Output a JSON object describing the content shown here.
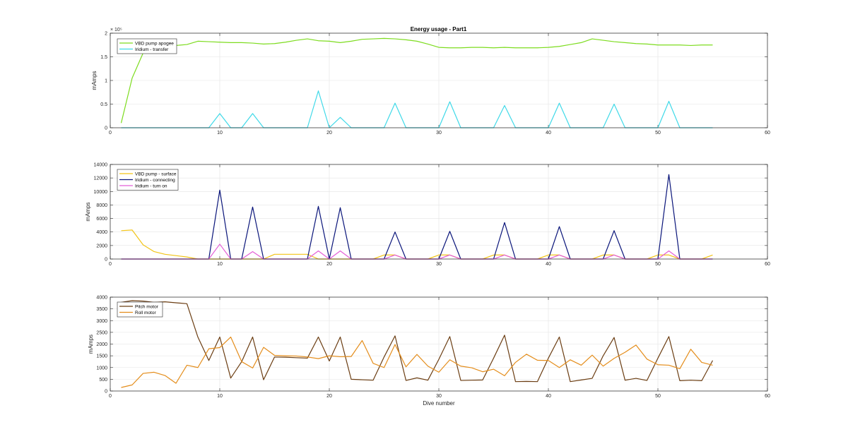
{
  "figure_title": "Energy usage - Part1",
  "chart_data": [
    {
      "type": "line",
      "title": "Energy usage - Part1",
      "xlabel": "",
      "ylabel": "mAmps",
      "xlim": [
        0,
        60
      ],
      "ylim": [
        0,
        200000
      ],
      "xticks": [
        0,
        10,
        20,
        30,
        40,
        50,
        60
      ],
      "xtick_labels": [
        "0",
        "10",
        "20",
        "30",
        "40",
        "50",
        "60"
      ],
      "yticks": [
        0,
        50000,
        100000,
        150000,
        200000
      ],
      "ytick_labels": [
        "0",
        "0.5",
        "1",
        "1.5",
        "2"
      ],
      "y_exponent_label": "× 10⁵",
      "grid": true,
      "legend_position": "top-left",
      "x": [
        1,
        2,
        3,
        4,
        5,
        6,
        7,
        8,
        9,
        10,
        11,
        12,
        13,
        14,
        15,
        16,
        17,
        18,
        19,
        20,
        21,
        22,
        23,
        24,
        25,
        26,
        27,
        28,
        29,
        30,
        31,
        32,
        33,
        34,
        35,
        36,
        37,
        38,
        39,
        40,
        41,
        42,
        43,
        44,
        45,
        46,
        47,
        48,
        49,
        50,
        51,
        52,
        53,
        54,
        55
      ],
      "series": [
        {
          "name": "VBD pump apogee",
          "color": "#7ddc1f",
          "values": [
            10000,
            105000,
            158000,
            172000,
            174000,
            174000,
            176000,
            183000,
            182000,
            181000,
            180000,
            180000,
            179000,
            177000,
            178000,
            181000,
            185000,
            188000,
            184000,
            183000,
            180000,
            183000,
            187000,
            188000,
            189000,
            188000,
            186000,
            183000,
            177000,
            170000,
            169000,
            169000,
            170000,
            170000,
            169000,
            170000,
            169000,
            169000,
            169000,
            170000,
            172000,
            176000,
            180000,
            188000,
            185000,
            182000,
            180000,
            178000,
            177000,
            175000,
            175000,
            175000,
            174000,
            175000,
            175000
          ]
        },
        {
          "name": "Iridium - transfer",
          "color": "#3fd9e8",
          "values": [
            0,
            0,
            0,
            0,
            0,
            0,
            0,
            0,
            0,
            30000,
            0,
            0,
            30000,
            0,
            0,
            0,
            0,
            0,
            78000,
            0,
            22000,
            0,
            0,
            0,
            0,
            52000,
            0,
            0,
            0,
            0,
            55000,
            0,
            0,
            0,
            0,
            47000,
            0,
            0,
            0,
            0,
            52000,
            0,
            0,
            0,
            0,
            50000,
            0,
            0,
            0,
            0,
            56000,
            0,
            0,
            0,
            0
          ]
        }
      ]
    },
    {
      "type": "line",
      "title": "",
      "xlabel": "",
      "ylabel": "mAmps",
      "xlim": [
        0,
        60
      ],
      "ylim": [
        0,
        14000
      ],
      "xticks": [
        0,
        10,
        20,
        30,
        40,
        50,
        60
      ],
      "xtick_labels": [
        "0",
        "10",
        "20",
        "30",
        "40",
        "50",
        "60"
      ],
      "yticks": [
        0,
        2000,
        4000,
        6000,
        8000,
        10000,
        12000,
        14000
      ],
      "ytick_labels": [
        "0",
        "2000",
        "4000",
        "6000",
        "8000",
        "10000",
        "12000",
        "14000"
      ],
      "grid": true,
      "legend_position": "top-left",
      "x": [
        1,
        2,
        3,
        4,
        5,
        6,
        7,
        8,
        9,
        10,
        11,
        12,
        13,
        14,
        15,
        16,
        17,
        18,
        19,
        20,
        21,
        22,
        23,
        24,
        25,
        26,
        27,
        28,
        29,
        30,
        31,
        32,
        33,
        34,
        35,
        36,
        37,
        38,
        39,
        40,
        41,
        42,
        43,
        44,
        45,
        46,
        47,
        48,
        49,
        50,
        51,
        52,
        53,
        54,
        55
      ],
      "series": [
        {
          "name": "VBD pump - surface",
          "color": "#f2c418",
          "values": [
            4200,
            4300,
            2100,
            1100,
            700,
            500,
            300,
            0,
            0,
            0,
            0,
            0,
            0,
            0,
            700,
            700,
            700,
            700,
            0,
            0,
            0,
            0,
            0,
            0,
            600,
            600,
            0,
            0,
            0,
            600,
            600,
            0,
            0,
            0,
            600,
            600,
            0,
            0,
            0,
            600,
            600,
            0,
            0,
            0,
            600,
            600,
            0,
            0,
            0,
            600,
            600,
            0,
            0,
            0,
            600
          ]
        },
        {
          "name": "Iridium - connecting",
          "color": "#0a157a",
          "values": [
            0,
            0,
            0,
            0,
            0,
            0,
            0,
            0,
            0,
            10200,
            0,
            0,
            7700,
            0,
            0,
            0,
            0,
            0,
            7800,
            0,
            7600,
            0,
            0,
            0,
            0,
            4000,
            0,
            0,
            0,
            0,
            4100,
            0,
            0,
            0,
            0,
            5400,
            0,
            0,
            0,
            0,
            4800,
            0,
            0,
            0,
            0,
            4200,
            0,
            0,
            0,
            0,
            12500,
            0,
            0,
            0,
            0
          ]
        },
        {
          "name": "Iridium - turn on",
          "color": "#e45fd6",
          "values": [
            0,
            0,
            0,
            0,
            0,
            0,
            0,
            0,
            0,
            2200,
            0,
            0,
            1100,
            0,
            0,
            0,
            0,
            0,
            1200,
            0,
            1200,
            0,
            0,
            0,
            0,
            600,
            0,
            0,
            0,
            0,
            600,
            0,
            0,
            0,
            0,
            600,
            0,
            0,
            0,
            0,
            600,
            0,
            0,
            0,
            0,
            600,
            0,
            0,
            0,
            0,
            1200,
            0,
            0,
            0,
            0
          ]
        }
      ]
    },
    {
      "type": "line",
      "title": "",
      "xlabel": "Dive number",
      "ylabel": "mAmps",
      "xlim": [
        0,
        60
      ],
      "ylim": [
        0,
        4000
      ],
      "xticks": [
        0,
        10,
        20,
        30,
        40,
        50,
        60
      ],
      "xtick_labels": [
        "0",
        "10",
        "20",
        "30",
        "40",
        "50",
        "60"
      ],
      "yticks": [
        0,
        500,
        1000,
        1500,
        2000,
        2500,
        3000,
        3500,
        4000
      ],
      "ytick_labels": [
        "0",
        "500",
        "1000",
        "1500",
        "2000",
        "2500",
        "3000",
        "3500",
        "4000"
      ],
      "grid": true,
      "legend_position": "top-left",
      "x": [
        1,
        2,
        3,
        4,
        5,
        6,
        7,
        8,
        9,
        10,
        11,
        12,
        13,
        14,
        15,
        16,
        17,
        18,
        19,
        20,
        21,
        22,
        23,
        24,
        25,
        26,
        27,
        28,
        29,
        30,
        31,
        32,
        33,
        34,
        35,
        36,
        37,
        38,
        39,
        40,
        41,
        42,
        43,
        44,
        45,
        46,
        47,
        48,
        49,
        50,
        51,
        52,
        53,
        54,
        55
      ],
      "series": [
        {
          "name": "Pitch motor",
          "color": "#6b3d12",
          "values": [
            3780,
            3850,
            3830,
            3780,
            3800,
            3760,
            3720,
            2300,
            1300,
            2300,
            550,
            1250,
            2300,
            480,
            1450,
            1440,
            1420,
            1400,
            2300,
            1280,
            2300,
            500,
            480,
            460,
            1450,
            2350,
            450,
            560,
            460,
            1350,
            2320,
            450,
            460,
            470,
            1400,
            2380,
            400,
            410,
            400,
            1400,
            2300,
            400,
            470,
            540,
            1500,
            2280,
            460,
            540,
            450,
            1400,
            2320,
            440,
            460,
            440,
            1300
          ]
        },
        {
          "name": "Roll motor",
          "color": "#e48d1b",
          "values": [
            150,
            260,
            750,
            800,
            660,
            330,
            1100,
            1000,
            1800,
            1850,
            2300,
            1250,
            980,
            1860,
            1520,
            1500,
            1490,
            1450,
            1380,
            1500,
            1460,
            1470,
            2150,
            1180,
            1000,
            1980,
            1030,
            1560,
            1060,
            800,
            1330,
            1060,
            990,
            820,
            930,
            650,
            1220,
            1570,
            1310,
            1300,
            1000,
            1330,
            1100,
            1530,
            1060,
            1390,
            1650,
            1960,
            1360,
            1120,
            1100,
            950,
            1780,
            1220,
            1100
          ]
        }
      ]
    }
  ]
}
